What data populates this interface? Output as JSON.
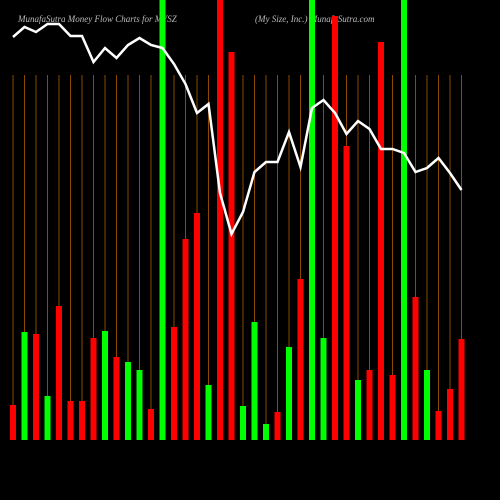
{
  "chart_data": {
    "type": "bar",
    "title": "MunafaSutra  Money Flow  Charts for MYSZ",
    "subtitle": "(My Size,  Inc.) MunafaSutra.com",
    "categories": [
      null,
      null,
      null,
      null,
      null,
      null,
      null,
      null,
      null,
      null,
      null,
      null,
      null,
      null,
      null,
      null,
      null,
      null,
      null,
      null,
      null,
      null,
      null,
      null,
      null,
      null,
      null,
      null,
      null,
      null,
      null,
      null,
      null,
      null,
      null,
      null,
      null,
      null,
      null,
      null
    ],
    "values": [
      35,
      108,
      106,
      44,
      134,
      39,
      39,
      102,
      109,
      83,
      78,
      70,
      31,
      440,
      113,
      201,
      227,
      55,
      440,
      388,
      34,
      118,
      16,
      28,
      93,
      161,
      440,
      102,
      424,
      294,
      60,
      70,
      398,
      65,
      440,
      143,
      70,
      29,
      51,
      101
    ],
    "colors": [
      "#f00",
      "#0f0",
      "#f00",
      "#0f0",
      "#f00",
      "#f00",
      "#f00",
      "#f00",
      "#0f0",
      "#f00",
      "#0f0",
      "#0f0",
      "#f00",
      "#0f0",
      "#f00",
      "#f00",
      "#f00",
      "#0f0",
      "#f00",
      "#f00",
      "#0f0",
      "#0f0",
      "#0f0",
      "#f00",
      "#0f0",
      "#f00",
      "#0f0",
      "#0f0",
      "#f00",
      "#f00",
      "#0f0",
      "#f00",
      "#f00",
      "#f00",
      "#0f0",
      "#f00",
      "#0f0",
      "#f00",
      "#f00",
      "#f00"
    ],
    "ylim": [
      0,
      440
    ],
    "line": {
      "color": "#fff",
      "axis": "y2",
      "values": [
        403,
        413,
        408,
        416,
        416,
        404,
        404,
        378,
        392,
        382,
        395,
        402,
        395,
        392,
        376,
        356,
        327,
        336,
        247,
        206,
        228,
        268,
        278,
        278,
        308,
        273,
        332,
        340,
        327,
        306,
        319,
        311,
        291,
        291,
        287,
        268,
        272,
        282,
        267,
        250
      ]
    },
    "y2lim": [
      0,
      440
    ],
    "grid_color": "#8a4a00"
  }
}
